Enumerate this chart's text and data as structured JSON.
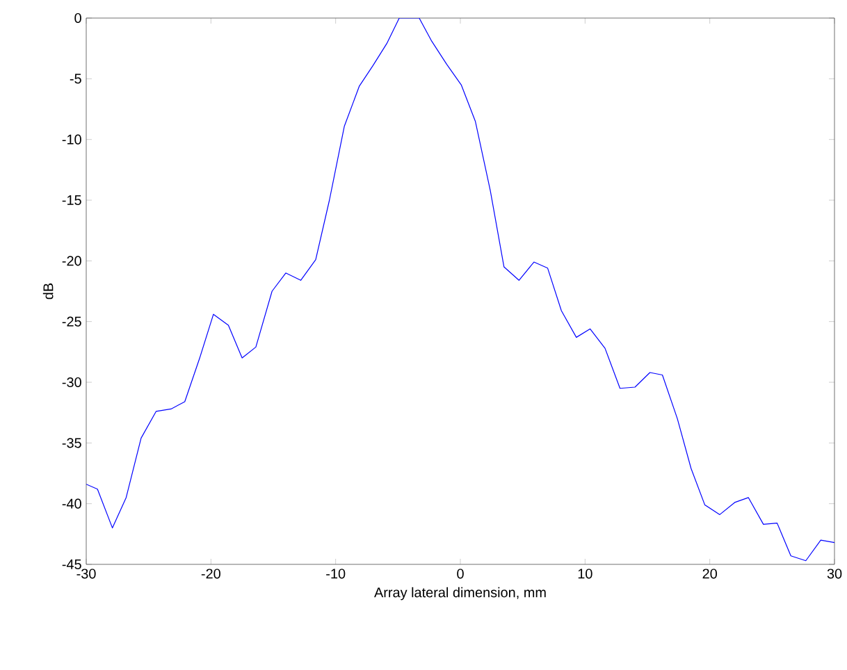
{
  "chart_data": {
    "type": "line",
    "xlabel": "Array lateral dimension, mm",
    "ylabel": "dB",
    "x": [
      -30,
      -29.1,
      -27.9,
      -26.8,
      -25.6,
      -24.4,
      -23.2,
      -22.1,
      -20.9,
      -19.8,
      -18.6,
      -17.5,
      -16.4,
      -15.1,
      -14.0,
      -12.8,
      -11.6,
      -10.5,
      -9.3,
      -8.1,
      -7.0,
      -5.9,
      -4.9,
      -3.3,
      -2.3,
      -1.1,
      0.07,
      1.2,
      2.4,
      3.5,
      4.7,
      5.9,
      7.0,
      8.1,
      9.3,
      10.4,
      11.6,
      12.8,
      14.0,
      15.2,
      16.2,
      17.4,
      18.5,
      19.6,
      20.8,
      22.0,
      23.1,
      24.3,
      25.4,
      26.5,
      27.7,
      28.9,
      30
    ],
    "series": [
      {
        "color": "#0000ff",
        "values": [
          -38.4,
          -38.8,
          -42.0,
          -39.5,
          -34.6,
          -32.4,
          -32.2,
          -31.6,
          -28.0,
          -24.4,
          -25.3,
          -28.0,
          -27.1,
          -22.5,
          -21.0,
          -21.6,
          -19.9,
          -15.0,
          -8.9,
          -5.6,
          -3.9,
          -2.1,
          0,
          0,
          -1.9,
          -3.8,
          -5.5,
          -8.5,
          -14.2,
          -20.5,
          -21.6,
          -20.1,
          -20.6,
          -24.1,
          -26.3,
          -25.6,
          -27.2,
          -30.5,
          -30.4,
          -29.2,
          -29.4,
          -33.0,
          -37.1,
          -40.1,
          -40.9,
          -39.9,
          -39.5,
          -41.7,
          -41.6,
          -44.3,
          -44.7,
          -43.0,
          -43.2
        ]
      }
    ],
    "xlim": [
      -30,
      30
    ],
    "ylim": [
      -45,
      0
    ],
    "xticks": [
      -30,
      -20,
      -10,
      0,
      10,
      20,
      30
    ],
    "yticks": [
      -45,
      -40,
      -35,
      -30,
      -25,
      -20,
      -15,
      -10,
      -5,
      0
    ],
    "grid": false,
    "line_style": "solid",
    "marker": "none"
  }
}
